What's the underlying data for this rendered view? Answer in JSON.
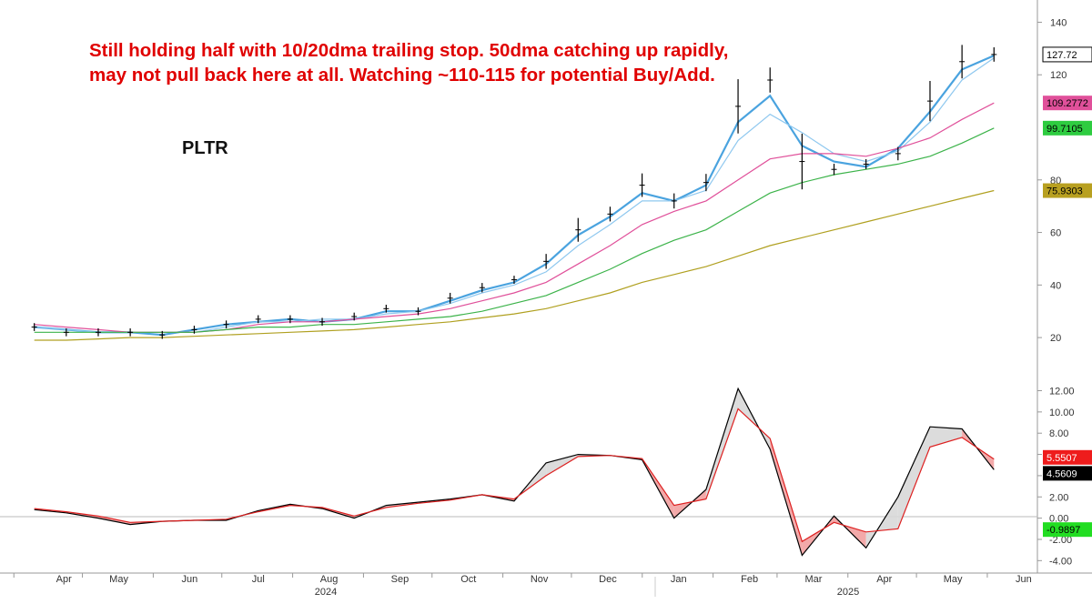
{
  "annotation": "Still holding half with 10/20dma trailing stop. 50dma catching up rapidly, may not pull back here at all. Watching ~110-115 for potential Buy/Add.",
  "ticker": "PLTR",
  "chart_data": [
    {
      "type": "line",
      "panel": "price",
      "title": "",
      "ylim": [
        10,
        145
      ],
      "yticks": [
        20,
        40,
        60,
        80,
        120,
        140
      ],
      "grid": false,
      "x_axis": {
        "months": [
          "Apr",
          "May",
          "Jun",
          "Jul",
          "Aug",
          "Sep",
          "Oct",
          "Nov",
          "Dec",
          "Jan",
          "Feb",
          "Mar",
          "Apr",
          "May",
          "Jun"
        ],
        "years": [
          "2024",
          "2025"
        ]
      },
      "x": [
        "2024-03-25",
        "2024-04-08",
        "2024-04-22",
        "2024-05-06",
        "2024-05-20",
        "2024-06-03",
        "2024-06-17",
        "2024-07-01",
        "2024-07-15",
        "2024-07-29",
        "2024-08-12",
        "2024-08-26",
        "2024-09-09",
        "2024-09-23",
        "2024-10-07",
        "2024-10-21",
        "2024-11-04",
        "2024-11-18",
        "2024-12-02",
        "2024-12-16",
        "2024-12-30",
        "2025-01-13",
        "2025-01-27",
        "2025-02-10",
        "2025-02-24",
        "2025-03-10",
        "2025-03-24",
        "2025-04-07",
        "2025-04-21",
        "2025-05-05",
        "2025-05-19"
      ],
      "series": [
        {
          "name": "price",
          "color": "#000000",
          "values": [
            24,
            22,
            22,
            22,
            21,
            23,
            25,
            27,
            27,
            26,
            28,
            31,
            30,
            35,
            39,
            42,
            49,
            61,
            67,
            78,
            72,
            79,
            108,
            118,
            87,
            84,
            86,
            90,
            110,
            125,
            127.72
          ]
        },
        {
          "name": "",
          "color": "#4aa3df",
          "values": [
            24,
            23,
            22,
            22,
            21,
            23,
            25,
            26,
            27,
            26,
            27,
            30,
            30,
            34,
            38,
            41,
            48,
            59,
            66,
            75,
            72,
            78,
            102,
            112,
            93,
            87,
            85,
            92,
            106,
            122,
            127.3
          ]
        },
        {
          "name": "",
          "color": "#8fc8ef",
          "values": [
            24,
            23,
            22,
            22,
            22,
            22,
            24,
            26,
            26,
            27,
            27,
            29,
            30,
            33,
            37,
            40,
            45,
            55,
            63,
            72,
            72,
            76,
            95,
            105,
            98,
            90,
            87,
            91,
            102,
            118,
            126.4
          ]
        },
        {
          "name": "",
          "color": "#e0509a",
          "values": [
            25,
            24,
            23,
            22,
            22,
            22,
            23,
            25,
            26,
            26,
            27,
            28,
            29,
            31,
            34,
            37,
            41,
            48,
            55,
            63,
            68,
            72,
            80,
            88,
            90,
            90,
            89,
            92,
            96,
            103,
            109.2772
          ]
        },
        {
          "name": "",
          "color": "#3cb34a",
          "values": [
            22,
            22,
            22,
            22,
            22,
            22,
            23,
            24,
            24,
            25,
            25,
            26,
            27,
            28,
            30,
            33,
            36,
            41,
            46,
            52,
            57,
            61,
            68,
            75,
            79,
            82,
            84,
            86,
            89,
            94,
            99.7105
          ]
        },
        {
          "name": "",
          "color": "#b0a020",
          "values": [
            19,
            19,
            19.5,
            20,
            20,
            20.5,
            21,
            21.5,
            22,
            22.5,
            23,
            24,
            25,
            26,
            27.5,
            29,
            31,
            34,
            37,
            41,
            44,
            47,
            51,
            55,
            58,
            61,
            64,
            67,
            70,
            73,
            75.9303
          ]
        }
      ],
      "last_values": [
        "127.72",
        "109.2772",
        "99.7105",
        "75.9303"
      ],
      "label_colors": [
        "#000000",
        "#e0509a",
        "#2ecc40",
        "#b8a020"
      ]
    },
    {
      "type": "line",
      "panel": "oscillator",
      "title": "",
      "ylim": [
        -5,
        13.5
      ],
      "yticks": [
        "-4.00",
        "-2.00",
        "0.00",
        "2.00",
        "4.00",
        "6.00",
        "8.00",
        "10.00",
        "12.00"
      ],
      "grid": false,
      "series": [
        {
          "name": "",
          "color": "#000000",
          "values": [
            0.8,
            0.5,
            0.0,
            -0.6,
            -0.3,
            -0.2,
            -0.2,
            0.7,
            1.3,
            0.9,
            0.0,
            1.2,
            1.5,
            1.8,
            2.2,
            1.6,
            5.2,
            6.0,
            5.9,
            5.5,
            0.0,
            2.7,
            12.2,
            6.5,
            -3.5,
            0.2,
            -2.8,
            2.0,
            8.6,
            8.4,
            4.5609
          ]
        },
        {
          "name": "",
          "color": "#dd2020",
          "values": [
            0.9,
            0.6,
            0.2,
            -0.4,
            -0.3,
            -0.2,
            -0.1,
            0.6,
            1.2,
            1.0,
            0.2,
            1.0,
            1.4,
            1.7,
            2.2,
            1.8,
            4.0,
            5.8,
            5.9,
            5.6,
            1.2,
            1.8,
            10.3,
            7.5,
            -2.2,
            -0.4,
            -1.3,
            -1.0,
            6.7,
            7.6,
            5.5507
          ]
        }
      ],
      "last_values": [
        "5.5507",
        "4.5609",
        "-0.9897"
      ],
      "label_colors": [
        "#ee1c1c",
        "#000000",
        "#22dd22"
      ]
    }
  ]
}
